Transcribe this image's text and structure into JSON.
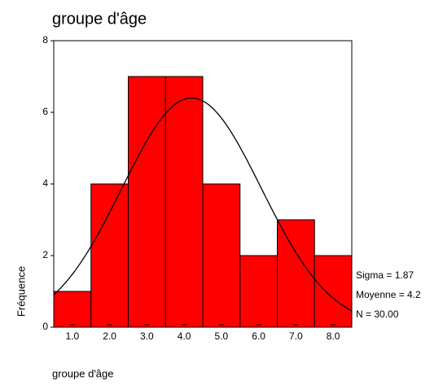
{
  "chart_data": {
    "type": "histogram",
    "title": "groupe d'âge",
    "x_label": "groupe d'âge",
    "y_label": "Fréquence",
    "bins": [
      0.5,
      1.5,
      2.5,
      3.5,
      4.5,
      5.5,
      6.5,
      7.5,
      8.5
    ],
    "values": [
      1,
      4,
      7,
      7,
      4,
      2,
      3,
      2
    ],
    "color": "#ff0000",
    "xlim": [
      0.5,
      8.5
    ],
    "xticks": [
      {
        "value": 1,
        "label": "1.0"
      },
      {
        "value": 2,
        "label": "2.0"
      },
      {
        "value": 3,
        "label": "3.0"
      },
      {
        "value": 4,
        "label": "4.0"
      },
      {
        "value": 5,
        "label": "5.0"
      },
      {
        "value": 6,
        "label": "6.0"
      },
      {
        "value": 7,
        "label": "7.0"
      },
      {
        "value": 8,
        "label": "8.0"
      }
    ],
    "ylim": [
      0,
      8
    ],
    "yticks": [
      0,
      2,
      4,
      6,
      8
    ],
    "stats": [
      {
        "label": "Sigma = 1.87",
        "value": 1.87
      },
      {
        "label": "Moyenne = 4.2",
        "value": 4.2
      },
      {
        "label": "N = 30.00",
        "value": 30
      }
    ]
  }
}
